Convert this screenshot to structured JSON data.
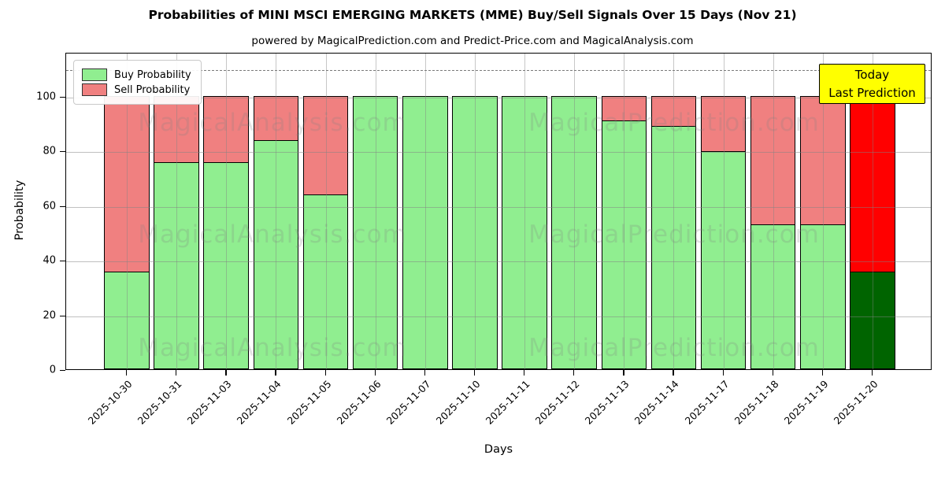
{
  "title": "Probabilities of MINI MSCI EMERGING MARKETS (MME) Buy/Sell Signals Over 15 Days (Nov 21)",
  "subtitle": "powered by MagicalPrediction.com and Predict-Price.com and MagicalAnalysis.com",
  "legend": {
    "items": [
      {
        "label": "Buy Probability",
        "color": "#90ee90"
      },
      {
        "label": "Sell Probability",
        "color": "#f08080"
      }
    ]
  },
  "annotation": {
    "line1": "Today",
    "line2": "Last Prediction",
    "bg_color": "#ffff00"
  },
  "axes": {
    "xlabel": "Days",
    "ylabel": "Probability",
    "yticks": [
      0,
      20,
      40,
      60,
      80,
      100
    ],
    "ylim": [
      0,
      116
    ],
    "dashed_line_y": 110,
    "grid": true
  },
  "watermarks": {
    "left": "MagicalAnalysis.com",
    "right": "MagicalPrediction.com"
  },
  "chart_data": {
    "type": "bar",
    "stacked": true,
    "categories": [
      "2025-10-30",
      "2025-10-31",
      "2025-11-03",
      "2025-11-04",
      "2025-11-05",
      "2025-11-06",
      "2025-11-07",
      "2025-11-10",
      "2025-11-11",
      "2025-11-12",
      "2025-11-13",
      "2025-11-14",
      "2025-11-17",
      "2025-11-18",
      "2025-11-19",
      "2025-11-20"
    ],
    "series": [
      {
        "name": "Buy Probability",
        "color": "#90ee90",
        "values": [
          36,
          76,
          76,
          84,
          64,
          100,
          100,
          100,
          100,
          100,
          91,
          89,
          80,
          53,
          53,
          36
        ]
      },
      {
        "name": "Sell Probability",
        "color": "#f08080",
        "values": [
          64,
          24,
          24,
          16,
          36,
          0,
          0,
          0,
          0,
          0,
          9,
          11,
          20,
          47,
          47,
          64
        ]
      }
    ],
    "today_bar": {
      "index": 15,
      "buy_color": "#006400",
      "sell_color": "#ff0000"
    },
    "bar_edge_color": "#000000",
    "ylim": [
      0,
      116
    ]
  }
}
